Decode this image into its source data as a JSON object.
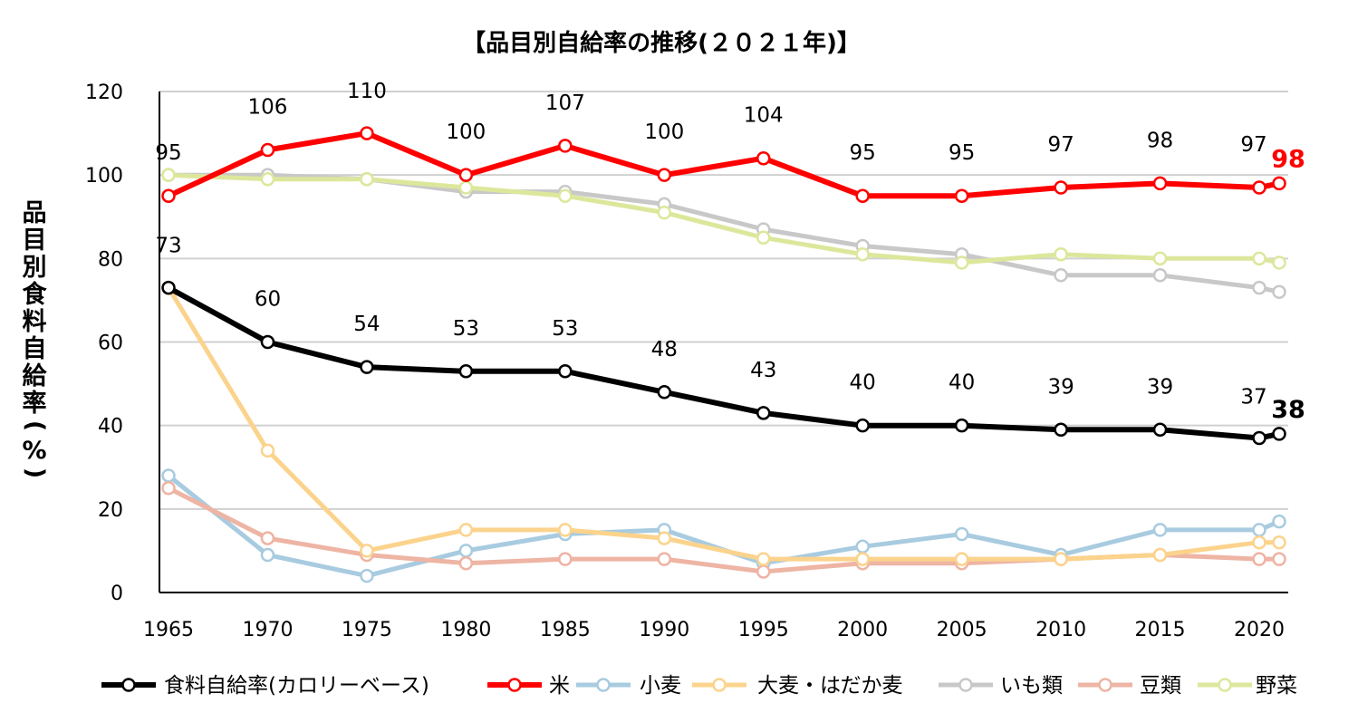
{
  "chart_data": {
    "type": "line",
    "title": "【品目別自給率の推移(２０２１年)】",
    "xlabel": "",
    "ylabel": "品目別食料自給率(%)",
    "ylim": [
      0,
      120
    ],
    "yticks": [
      "0",
      "20",
      "40",
      "60",
      "80",
      "100",
      "120"
    ],
    "x": [
      1965,
      1970,
      1975,
      1980,
      1985,
      1990,
      1995,
      2000,
      2005,
      2010,
      2015,
      2020,
      2021
    ],
    "xtick_labels": [
      "1965",
      "1970",
      "1975",
      "1980",
      "1985",
      "1990",
      "1995",
      "2000",
      "2005",
      "2010",
      "2015",
      "2020"
    ],
    "grid": true,
    "legend_position": "bottom",
    "series": [
      {
        "name": "いも類",
        "color": "#c8c8c8",
        "values": [
          100,
          100,
          99,
          96,
          96,
          93,
          87,
          83,
          81,
          76,
          76,
          73,
          72
        ]
      },
      {
        "name": "野菜",
        "color": "#dde79c",
        "values": [
          100,
          99,
          99,
          97,
          95,
          91,
          85,
          81,
          79,
          81,
          80,
          80,
          79
        ]
      },
      {
        "name": "小麦",
        "color": "#a8cbe0",
        "values": [
          28,
          9,
          4,
          10,
          14,
          15,
          7,
          11,
          14,
          9,
          15,
          15,
          17
        ]
      },
      {
        "name": "豆類",
        "color": "#eeb4a4",
        "values": [
          25,
          13,
          9,
          7,
          8,
          8,
          5,
          7,
          7,
          8,
          9,
          8,
          8
        ]
      },
      {
        "name": "大麦・はだか麦",
        "color": "#fbd38c",
        "values": [
          73,
          34,
          10,
          15,
          15,
          13,
          8,
          8,
          8,
          8,
          9,
          12,
          12
        ]
      },
      {
        "name": "米",
        "color": "#ff0000",
        "values": [
          95,
          106,
          110,
          100,
          107,
          100,
          104,
          95,
          95,
          97,
          98,
          97,
          98
        ]
      },
      {
        "name": "食料自給率(カロリーベース)",
        "color": "#000000",
        "values": [
          73,
          60,
          54,
          53,
          53,
          48,
          43,
          40,
          40,
          39,
          39,
          37,
          38
        ]
      }
    ],
    "legend_order": [
      "食料自給率(カロリーベース)",
      "米",
      "小麦",
      "大麦・はだか麦",
      "いも類",
      "豆類",
      "野菜"
    ],
    "data_labels": [
      {
        "series": "米",
        "values": [
          "95",
          "106",
          "110",
          "100",
          "107",
          "100",
          "104",
          "95",
          "95",
          "97",
          "98",
          "97"
        ]
      },
      {
        "series": "食料自給率(カロリーベース)",
        "values": [
          "73",
          "60",
          "54",
          "53",
          "53",
          "48",
          "43",
          "40",
          "40",
          "39",
          "39",
          "37"
        ]
      }
    ],
    "end_labels": [
      {
        "series": "米",
        "text": "98",
        "color": "#ff0000"
      },
      {
        "series": "食料自給率(カロリーベース)",
        "text": "38",
        "color": "#000000"
      }
    ]
  }
}
